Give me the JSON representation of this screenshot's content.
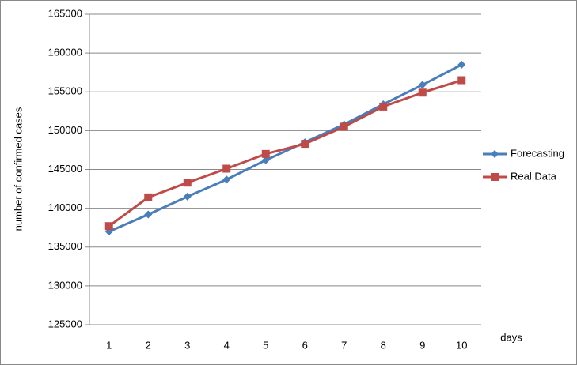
{
  "chart_data": {
    "type": "line",
    "x_label": "days",
    "y_label": "number of confirmed cases",
    "categories": [
      "1",
      "2",
      "3",
      "4",
      "5",
      "6",
      "7",
      "8",
      "9",
      "10"
    ],
    "series": [
      {
        "name": "Forecasting",
        "color": "#4a7ebb",
        "marker": "diamond",
        "values": [
          137000,
          139200,
          141500,
          143700,
          146200,
          148500,
          150800,
          153400,
          155900,
          158500
        ]
      },
      {
        "name": "Real Data",
        "color": "#be4b48",
        "marker": "square",
        "values": [
          137700,
          141400,
          143300,
          145100,
          147000,
          148300,
          150500,
          153100,
          154900,
          156500
        ]
      }
    ],
    "ylim": [
      125000,
      165000
    ],
    "yticks": [
      125000,
      130000,
      135000,
      140000,
      145000,
      150000,
      155000,
      160000,
      165000
    ],
    "grid": true,
    "legend": "right"
  }
}
